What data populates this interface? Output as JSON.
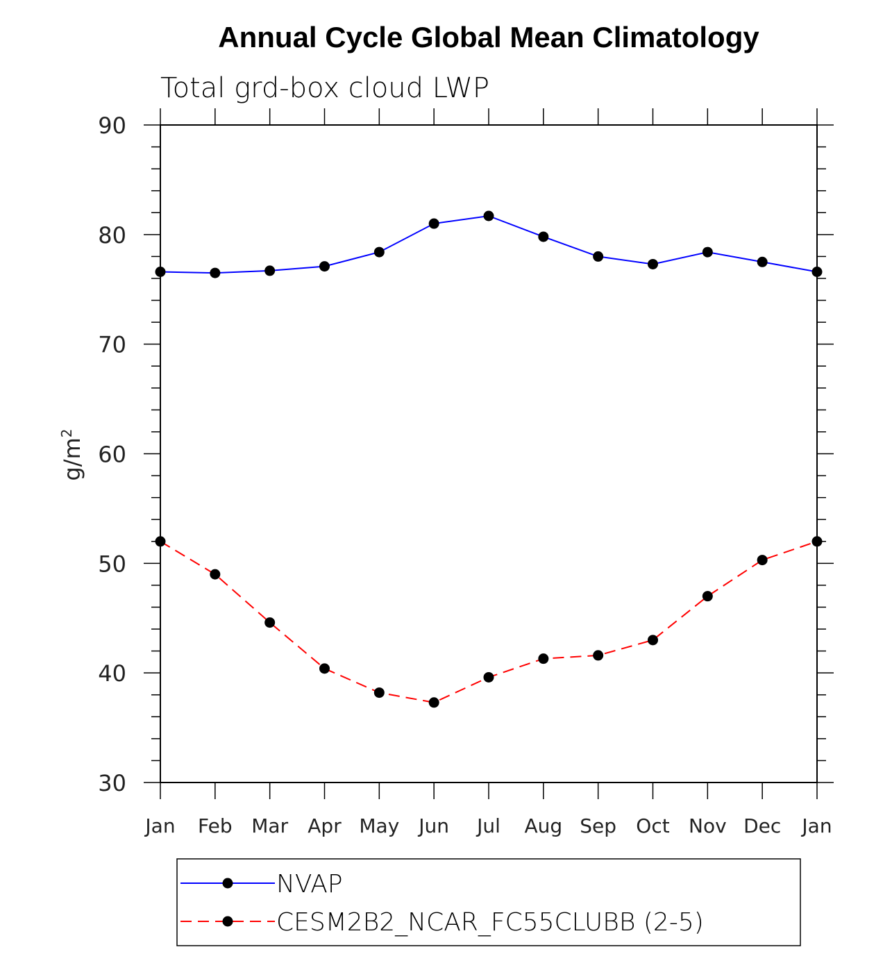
{
  "chart_data": {
    "type": "line",
    "title": "Annual Cycle Global Mean Climatology",
    "subtitle": "Total grd-box cloud LWP",
    "xlabel": "",
    "ylabel": "g/m",
    "ylabel_superscript": "2",
    "ylim": [
      30,
      90
    ],
    "yticks": [
      30,
      40,
      50,
      60,
      70,
      80,
      90
    ],
    "categories": [
      "Jan",
      "Feb",
      "Mar",
      "Apr",
      "May",
      "Jun",
      "Jul",
      "Aug",
      "Sep",
      "Oct",
      "Nov",
      "Dec",
      "Jan"
    ],
    "series": [
      {
        "name": "NVAP",
        "color": "#0000ff",
        "dash": "solid",
        "values": [
          76.6,
          76.5,
          76.7,
          77.1,
          78.4,
          81.0,
          81.7,
          79.8,
          78.0,
          77.3,
          78.4,
          77.5,
          76.6
        ]
      },
      {
        "name": "CESM2B2_NCAR_FC55CLUBB (2-5)",
        "color": "#ff0000",
        "dash": "dashed",
        "values": [
          52.0,
          49.0,
          44.6,
          40.4,
          38.2,
          37.3,
          39.6,
          41.3,
          41.6,
          43.0,
          47.0,
          50.3,
          52.0
        ]
      }
    ],
    "grid": false,
    "legend_position": "bottom"
  }
}
